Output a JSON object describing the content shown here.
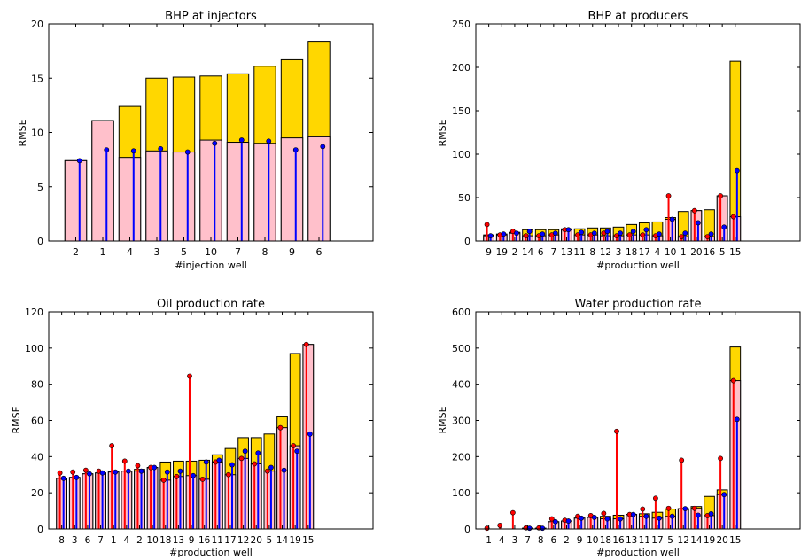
{
  "colors": {
    "total_bar": "#ffd700",
    "component_bar": "#ffc0cb",
    "red_stem": "#ff0000",
    "blue_stem": "#0000ff",
    "bar_edge": "#000000"
  },
  "chart_data": [
    {
      "type": "bar",
      "title": "BHP at injectors",
      "xlabel": "#injection well",
      "ylabel": "RMSE",
      "ylim": [
        0,
        20
      ],
      "yticks": [
        0,
        5,
        10,
        15,
        20
      ],
      "xlim": [
        -1,
        11
      ],
      "grid": false,
      "categories": [
        "2",
        "1",
        "4",
        "3",
        "5",
        "10",
        "7",
        "8",
        "9",
        "6"
      ],
      "series": [
        {
          "role": "total",
          "values": [
            7.4,
            11.1,
            12.4,
            15.0,
            15.1,
            15.2,
            15.4,
            16.1,
            16.7,
            18.4
          ]
        },
        {
          "role": "component",
          "values": [
            7.4,
            11.1,
            7.7,
            8.3,
            8.2,
            9.3,
            9.1,
            9.0,
            9.5,
            9.6
          ]
        },
        {
          "role": "red_stem",
          "values": [
            0,
            0,
            0,
            0,
            0,
            0,
            0,
            0,
            0,
            0
          ]
        },
        {
          "role": "blue_stem",
          "values": [
            7.4,
            8.4,
            8.3,
            8.5,
            8.2,
            9.0,
            9.3,
            9.2,
            8.4,
            8.7
          ]
        }
      ]
    },
    {
      "type": "bar",
      "title": "BHP at producers",
      "xlabel": "#production well",
      "ylabel": "RMSE",
      "ylim": [
        0,
        250
      ],
      "yticks": [
        0,
        50,
        100,
        150,
        200,
        250
      ],
      "xlim": [
        -1,
        24
      ],
      "grid": false,
      "categories": [
        "9",
        "19",
        "2",
        "14",
        "6",
        "7",
        "13",
        "11",
        "8",
        "12",
        "3",
        "18",
        "17",
        "4",
        "10",
        "1",
        "20",
        "16",
        "5",
        "15"
      ],
      "series": [
        {
          "role": "total",
          "values": [
            7,
            8,
            10,
            13,
            13,
            13,
            14,
            14,
            15,
            15,
            16,
            19,
            21,
            22,
            27,
            34,
            35,
            36,
            52,
            207
          ]
        },
        {
          "role": "component",
          "values": [
            6,
            7,
            9,
            6,
            6,
            7,
            13,
            7,
            7,
            6,
            6,
            7,
            7,
            6,
            25,
            5,
            35,
            5,
            52,
            28
          ]
        },
        {
          "role": "red_stem",
          "values": [
            19,
            7,
            11,
            6,
            6,
            7,
            13,
            7,
            7,
            9,
            6,
            7,
            7,
            6,
            52,
            5,
            35,
            5,
            52,
            28
          ]
        },
        {
          "role": "blue_stem",
          "values": [
            6,
            8,
            9,
            11,
            8,
            9,
            13,
            10,
            9,
            11,
            9,
            11,
            13,
            8,
            25,
            9,
            21,
            8,
            16,
            81
          ]
        }
      ]
    },
    {
      "type": "bar",
      "title": "Oil production rate",
      "xlabel": "#production well",
      "ylabel": "RMSE",
      "ylim": [
        0,
        120
      ],
      "yticks": [
        0,
        20,
        40,
        60,
        80,
        100,
        120
      ],
      "xlim": [
        -1,
        24
      ],
      "grid": false,
      "categories": [
        "8",
        "3",
        "6",
        "7",
        "1",
        "4",
        "2",
        "10",
        "18",
        "13",
        "9",
        "16",
        "11",
        "17",
        "12",
        "20",
        "5",
        "14",
        "19",
        "15"
      ],
      "series": [
        {
          "role": "total",
          "values": [
            28,
            28.5,
            30.5,
            31,
            31.5,
            32,
            33,
            34,
            37,
            37.5,
            37.5,
            38,
            41,
            44.5,
            50.5,
            50.5,
            52.5,
            62,
            97,
            102
          ]
        },
        {
          "role": "component",
          "values": [
            28,
            28.5,
            30.5,
            31,
            31.5,
            32,
            32,
            34,
            27,
            29,
            29.5,
            27.5,
            37,
            30,
            39,
            36,
            32,
            56,
            46,
            102
          ]
        },
        {
          "role": "red_stem",
          "values": [
            31,
            31.5,
            32.5,
            32,
            46,
            37.5,
            35,
            34,
            27,
            29,
            84.5,
            27.5,
            37,
            30,
            39,
            36,
            32,
            56,
            46,
            102
          ]
        },
        {
          "role": "blue_stem",
          "values": [
            28,
            28.5,
            30.5,
            31,
            31.5,
            32,
            32,
            34,
            31.5,
            32,
            29.5,
            37,
            38,
            35.5,
            43,
            42,
            34,
            32.5,
            43,
            52.5
          ]
        }
      ]
    },
    {
      "type": "bar",
      "title": "Water production rate",
      "xlabel": "#production well",
      "ylabel": "RMSE",
      "ylim": [
        0,
        600
      ],
      "yticks": [
        0,
        100,
        200,
        300,
        400,
        500,
        600
      ],
      "xlim": [
        -1,
        24
      ],
      "grid": false,
      "categories": [
        "1",
        "4",
        "3",
        "7",
        "8",
        "6",
        "2",
        "9",
        "10",
        "18",
        "16",
        "13",
        "11",
        "17",
        "5",
        "12",
        "14",
        "19",
        "20",
        "15"
      ],
      "series": [
        {
          "role": "total",
          "values": [
            0,
            0,
            0,
            2,
            2,
            20,
            22,
            30,
            32,
            35,
            38,
            40,
            42,
            46,
            55,
            56,
            62,
            90,
            108,
            503
          ]
        },
        {
          "role": "component",
          "values": [
            0,
            0,
            0,
            2,
            2,
            20,
            22,
            30,
            32,
            28,
            28,
            40,
            35,
            30,
            35,
            56,
            57,
            37,
            95,
            410
          ]
        },
        {
          "role": "red_stem",
          "values": [
            2,
            10,
            45,
            3,
            3,
            28,
            24,
            35,
            37,
            43,
            270,
            40,
            55,
            85,
            57,
            190,
            57,
            37,
            195,
            410
          ]
        },
        {
          "role": "blue_stem",
          "values": [
            0,
            0,
            0,
            2,
            2,
            20,
            22,
            30,
            32,
            28,
            28,
            40,
            35,
            30,
            35,
            56,
            38,
            42,
            95,
            303
          ]
        }
      ]
    }
  ]
}
